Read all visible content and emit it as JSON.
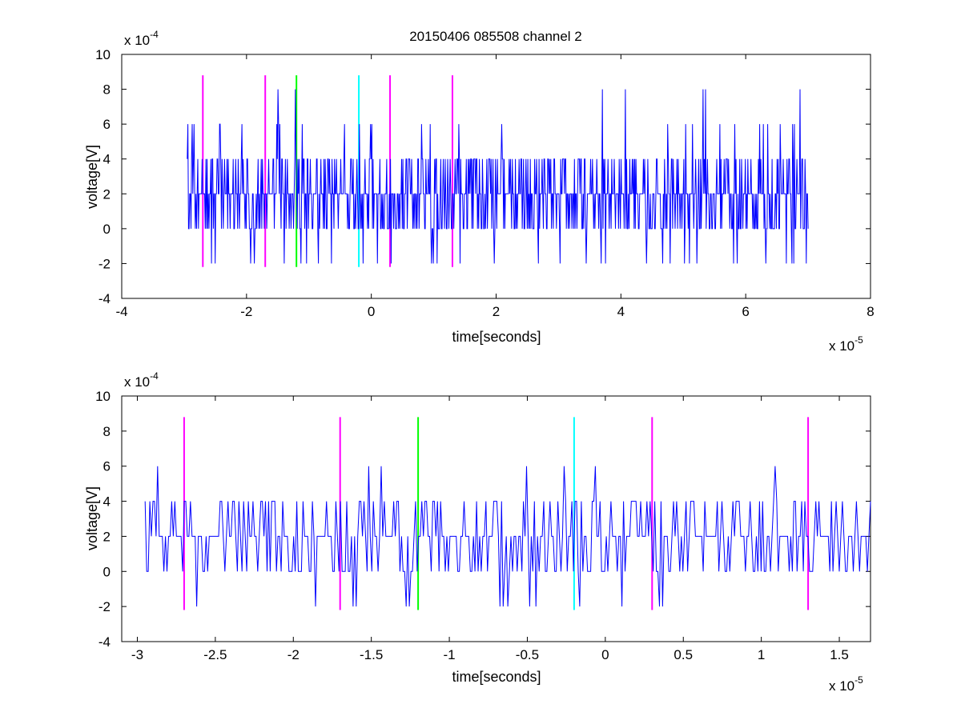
{
  "figure_title": "20150406 085508 channel 2",
  "chart_data": [
    {
      "type": "line",
      "title": "20150406 085508 channel 2",
      "xlabel": "time[seconds]",
      "ylabel": "voltage[V]",
      "x_multiplier": "x 10",
      "x_exponent": "-5",
      "y_multiplier": "x 10",
      "y_exponent": "-4",
      "xlim": [
        -4,
        8
      ],
      "ylim": [
        -4,
        10
      ],
      "xticks": [
        -4,
        -2,
        0,
        2,
        4,
        6,
        8
      ],
      "xtick_labels": [
        "-4",
        "-2",
        "0",
        "2",
        "4",
        "6",
        "8"
      ],
      "yticks": [
        -4,
        -2,
        0,
        2,
        4,
        6,
        8,
        10
      ],
      "ytick_labels": [
        "-4",
        "-2",
        "0",
        "2",
        "4",
        "6",
        "8",
        "10"
      ],
      "grid": false,
      "signal": {
        "color": "#0000ff",
        "x_range": [
          -2.95,
          7.0
        ],
        "sample_count": 1000,
        "levels": [
          -2,
          0,
          2,
          4,
          6,
          8
        ]
      },
      "markers": [
        {
          "x": -2.7,
          "color": "#ff00ff",
          "y_range": [
            -2.2,
            8.8
          ]
        },
        {
          "x": -1.7,
          "color": "#ff00ff",
          "y_range": [
            -2.2,
            8.8
          ]
        },
        {
          "x": -1.2,
          "color": "#00ff00",
          "y_range": [
            -2.2,
            8.8
          ]
        },
        {
          "x": -0.2,
          "color": "#00ffff",
          "y_range": [
            -2.2,
            8.8
          ]
        },
        {
          "x": 0.3,
          "color": "#ff00ff",
          "y_range": [
            -2.2,
            8.8
          ]
        },
        {
          "x": 1.3,
          "color": "#ff00ff",
          "y_range": [
            -2.2,
            8.8
          ]
        }
      ]
    },
    {
      "type": "line",
      "title": "",
      "xlabel": "time[seconds]",
      "ylabel": "voltage[V]",
      "x_multiplier": "x 10",
      "x_exponent": "-5",
      "y_multiplier": "x 10",
      "y_exponent": "-4",
      "xlim": [
        -3.1,
        1.7
      ],
      "ylim": [
        -4,
        10
      ],
      "xticks": [
        -3,
        -2.5,
        -2,
        -1.5,
        -1,
        -0.5,
        0,
        0.5,
        1,
        1.5
      ],
      "xtick_labels": [
        "-3",
        "-2.5",
        "-2",
        "-1.5",
        "-1",
        "-0.5",
        "0",
        "0.5",
        "1",
        "1.5"
      ],
      "yticks": [
        -4,
        -2,
        0,
        2,
        4,
        6,
        8,
        10
      ],
      "ytick_labels": [
        "-4",
        "-2",
        "0",
        "2",
        "4",
        "6",
        "8",
        "10"
      ],
      "grid": false,
      "signal": {
        "color": "#0000ff",
        "x_range": [
          -2.95,
          1.7
        ],
        "sample_count": 465,
        "levels": [
          -2,
          0,
          2,
          4,
          6
        ]
      },
      "markers": [
        {
          "x": -2.7,
          "color": "#ff00ff",
          "y_range": [
            -2.2,
            8.8
          ]
        },
        {
          "x": -1.7,
          "color": "#ff00ff",
          "y_range": [
            -2.2,
            8.8
          ]
        },
        {
          "x": -1.2,
          "color": "#00ff00",
          "y_range": [
            -2.2,
            8.8
          ]
        },
        {
          "x": -0.2,
          "color": "#00ffff",
          "y_range": [
            -2.2,
            8.8
          ]
        },
        {
          "x": 0.3,
          "color": "#ff00ff",
          "y_range": [
            -2.2,
            8.8
          ]
        },
        {
          "x": 1.3,
          "color": "#ff00ff",
          "y_range": [
            -2.2,
            8.8
          ]
        }
      ]
    }
  ]
}
